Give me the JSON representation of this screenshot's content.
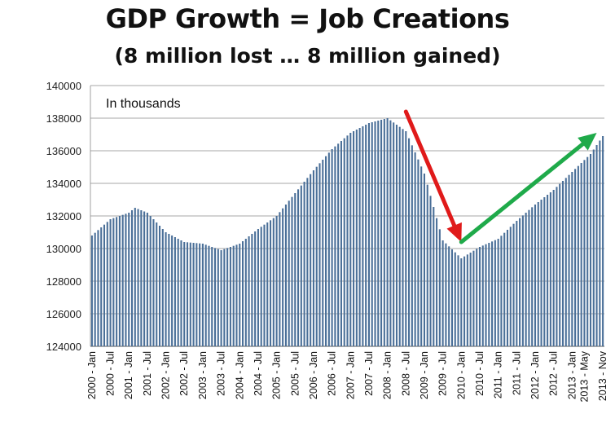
{
  "title": "GDP Growth = Job Creations",
  "subtitle": "(8 million lost … 8 million gained)",
  "chart_data": {
    "type": "bar",
    "annotation": "In thousands",
    "ylim": [
      124000,
      140000
    ],
    "yticks": [
      124000,
      126000,
      128000,
      130000,
      132000,
      134000,
      136000,
      138000,
      140000
    ],
    "xtick_labels": [
      "2000 - Jan",
      "2000 - Jul",
      "2001 - Jan",
      "2001 - Jul",
      "2002 - Jan",
      "2002 - Jul",
      "2003 - Jan",
      "2003 - Jul",
      "2004 - Jan",
      "2004 - Jul",
      "2005 - Jan",
      "2005 - Jul",
      "2006 - Jan",
      "2006 - Jul",
      "2007 - Jan",
      "2007 - Jul",
      "2008 - Jan",
      "2008 - Jul",
      "2009 - Jan",
      "2009 - Jul",
      "2010 - Jan",
      "2010 - Jul",
      "2011 - Jan",
      "2011 - Jul",
      "2012 - Jan",
      "2012 - Jul",
      "2013 - Jan",
      "2013 - May",
      "2013 - Nov"
    ],
    "series_color": "#4a6f98",
    "anchors": [
      [
        "2000-01",
        130800
      ],
      [
        "2000-07",
        131800
      ],
      [
        "2001-01",
        132200
      ],
      [
        "2001-03",
        132500
      ],
      [
        "2001-07",
        132200
      ],
      [
        "2002-01",
        131000
      ],
      [
        "2002-07",
        130400
      ],
      [
        "2003-01",
        130300
      ],
      [
        "2003-07",
        129900
      ],
      [
        "2004-01",
        130300
      ],
      [
        "2004-07",
        131200
      ],
      [
        "2005-01",
        132000
      ],
      [
        "2005-07",
        133400
      ],
      [
        "2006-01",
        134800
      ],
      [
        "2006-07",
        136100
      ],
      [
        "2007-01",
        137100
      ],
      [
        "2007-07",
        137700
      ],
      [
        "2008-01",
        138000
      ],
      [
        "2008-07",
        137200
      ],
      [
        "2009-01",
        134600
      ],
      [
        "2009-07",
        130500
      ],
      [
        "2010-01",
        129400
      ],
      [
        "2010-07",
        130100
      ],
      [
        "2011-01",
        130600
      ],
      [
        "2011-07",
        131700
      ],
      [
        "2012-01",
        132700
      ],
      [
        "2012-07",
        133600
      ],
      [
        "2013-01",
        134700
      ],
      [
        "2013-07",
        135800
      ],
      [
        "2013-11",
        136900
      ]
    ],
    "arrows": [
      {
        "name": "decline",
        "color": "#e01a1a",
        "from": [
          "2008-07",
          138400
        ],
        "to": [
          "2010-01",
          130400
        ]
      },
      {
        "name": "recovery",
        "color": "#1faa4a",
        "from": [
          "2010-01",
          130400
        ],
        "to": [
          "2013-09",
          137100
        ]
      }
    ]
  }
}
